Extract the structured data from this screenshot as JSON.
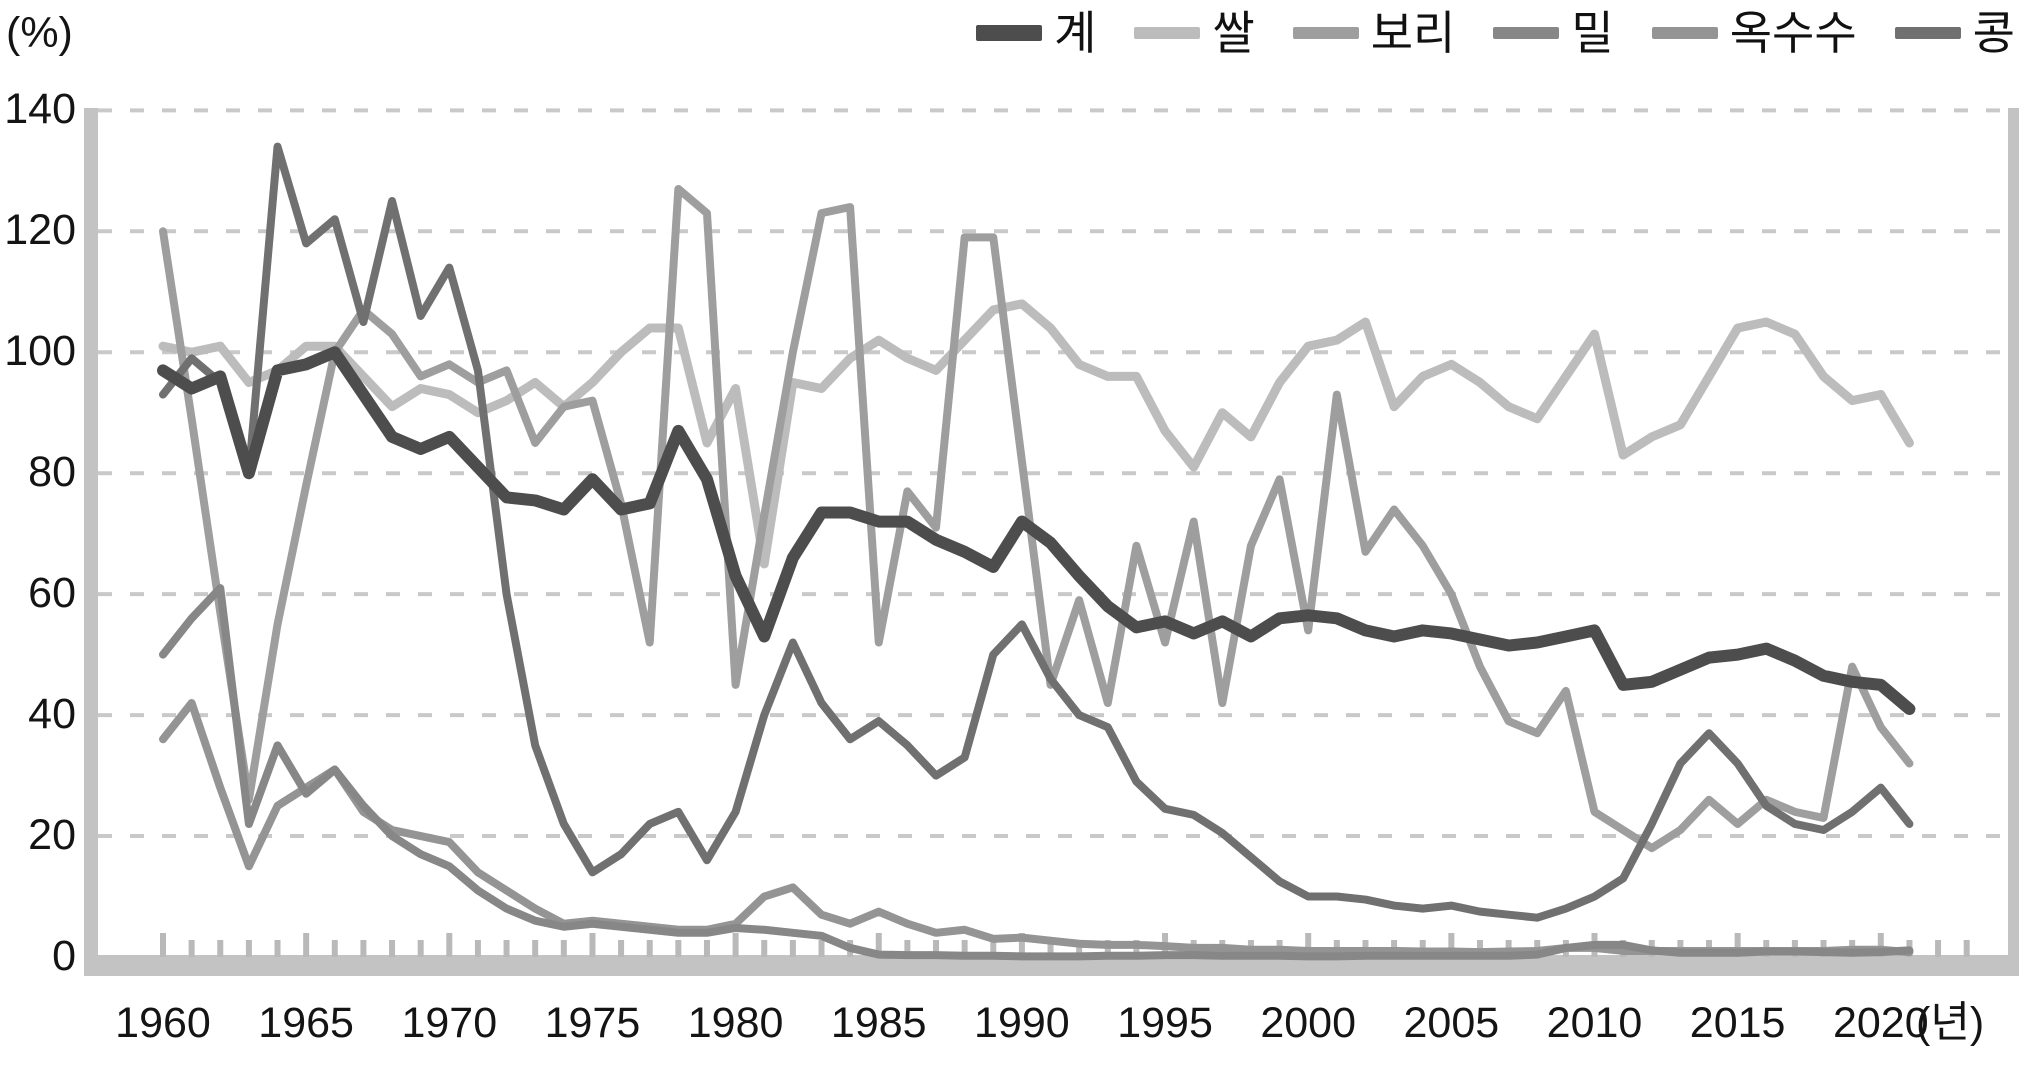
{
  "unit_labels": {
    "y_unit": "(%)",
    "x_unit": "(년)"
  },
  "chart_data": {
    "type": "line",
    "title": "",
    "xlabel": "(년)",
    "ylabel": "(%)",
    "ylim": [
      0,
      140
    ],
    "grid": "dotted horizontal lines every 20",
    "legend_position": "top-right",
    "y_ticks": [
      0,
      20,
      40,
      60,
      80,
      100,
      120,
      140
    ],
    "x_tick_labels": [
      1960,
      1965,
      1970,
      1975,
      1980,
      1985,
      1990,
      1995,
      2000,
      2005,
      2010,
      2015,
      2020
    ],
    "x": [
      1960,
      1961,
      1962,
      1963,
      1964,
      1965,
      1966,
      1967,
      1968,
      1969,
      1970,
      1971,
      1972,
      1973,
      1974,
      1975,
      1976,
      1977,
      1978,
      1979,
      1980,
      1981,
      1982,
      1983,
      1984,
      1985,
      1986,
      1987,
      1988,
      1989,
      1990,
      1991,
      1992,
      1993,
      1994,
      1995,
      1996,
      1997,
      1998,
      1999,
      2000,
      2001,
      2002,
      2003,
      2004,
      2005,
      2006,
      2007,
      2008,
      2009,
      2010,
      2011,
      2012,
      2013,
      2014,
      2015,
      2016,
      2017,
      2018,
      2019,
      2020,
      2021
    ],
    "series": [
      {
        "name": "계",
        "color": "#4d4d4d",
        "width": 12,
        "values": [
          97,
          94,
          96,
          80,
          97,
          98,
          100,
          93,
          86,
          84,
          86,
          81,
          76,
          75.5,
          74,
          79,
          74,
          75,
          87,
          79,
          63,
          53,
          66,
          73.5,
          73.5,
          72,
          72,
          69,
          67,
          64.5,
          72,
          68.5,
          63,
          58,
          54.5,
          55.5,
          53.5,
          55.5,
          53,
          56,
          56.5,
          56,
          54,
          53,
          54,
          53.5,
          52.5,
          51.5,
          52,
          53,
          54,
          45,
          45.5,
          47.5,
          49.5,
          50,
          51,
          49,
          46.5,
          45.5,
          45,
          41
        ]
      },
      {
        "name": "쌀",
        "color": "#bcbcbc",
        "width": 9,
        "values": [
          101,
          100,
          101,
          95,
          97,
          101,
          101,
          96,
          91,
          94,
          93,
          90,
          92,
          95,
          91,
          95,
          100,
          104,
          104,
          85,
          94,
          65,
          95,
          94,
          99,
          102,
          99,
          97,
          102,
          107,
          108,
          104,
          98,
          96,
          96,
          87,
          81,
          90,
          86,
          95,
          101,
          102,
          105,
          91,
          96,
          98,
          95,
          91,
          89,
          96,
          103,
          83,
          86,
          88,
          96,
          104,
          105,
          103,
          96,
          92,
          93,
          85
        ]
      },
      {
        "name": "보리",
        "color": "#9e9e9e",
        "width": 8,
        "values": [
          120,
          89,
          57,
          26,
          55,
          78,
          100,
          107,
          103,
          96,
          98,
          95,
          97,
          85,
          91,
          92,
          75,
          52,
          127,
          123,
          45,
          73,
          100,
          123,
          124,
          52,
          77,
          71,
          119,
          119,
          82,
          45,
          59,
          42,
          68,
          52,
          72,
          42,
          68,
          79,
          54,
          93,
          67,
          74,
          68,
          60,
          48,
          39,
          37,
          44,
          24,
          21,
          18,
          21,
          26,
          22,
          26,
          24,
          23,
          48,
          38,
          32
        ]
      },
      {
        "name": "밀",
        "color": "#878787",
        "width": 8,
        "values": [
          50,
          56,
          61,
          22,
          35,
          27,
          31,
          25,
          20,
          17,
          15,
          11,
          8,
          6,
          5,
          5.5,
          5,
          4.5,
          4,
          4,
          4.8,
          4.5,
          4,
          3.5,
          1.5,
          0.4,
          0.3,
          0.3,
          0.2,
          0.2,
          0.1,
          0.1,
          0.1,
          0.2,
          0.2,
          0.3,
          0.3,
          0.2,
          0.2,
          0.2,
          0.1,
          0.1,
          0.2,
          0.2,
          0.2,
          0.2,
          0.2,
          0.2,
          0.4,
          1.5,
          2,
          2,
          1.1,
          0.7,
          0.7,
          0.7,
          0.9,
          0.9,
          0.8,
          0.7,
          0.8,
          1.1
        ]
      },
      {
        "name": "옥수수",
        "color": "#949494",
        "width": 8,
        "values": [
          36,
          42,
          28,
          15,
          25,
          28,
          31,
          24,
          21,
          20,
          19,
          14,
          11,
          8,
          5.5,
          6,
          5.5,
          5,
          4.5,
          4.5,
          5.5,
          10,
          11.5,
          7,
          5.5,
          7.5,
          5.5,
          4,
          4.5,
          3,
          3.2,
          2.7,
          2.2,
          2,
          2,
          1.8,
          1.5,
          1.5,
          1.2,
          1.2,
          1,
          1,
          1,
          1,
          0.9,
          0.9,
          0.8,
          0.9,
          1,
          1.5,
          1.5,
          1,
          1,
          1,
          1,
          1,
          1,
          1,
          1,
          1.2,
          1.2,
          0.8
        ]
      },
      {
        "name": "콩",
        "color": "#707070",
        "width": 8,
        "values": [
          93,
          99,
          95,
          80,
          134,
          118,
          122,
          105,
          125,
          106,
          114,
          97,
          60,
          35,
          22,
          14,
          17,
          22,
          24,
          16,
          24,
          40,
          52,
          42,
          36,
          39,
          35,
          30,
          33,
          50,
          55,
          46,
          40,
          38,
          29,
          24.5,
          23.5,
          20.5,
          16.5,
          12.5,
          10,
          10,
          9.5,
          8.5,
          8,
          8.5,
          7.5,
          7,
          6.5,
          8,
          10,
          13,
          22,
          32,
          37,
          32,
          25,
          22,
          21,
          24,
          28,
          22
        ]
      }
    ]
  }
}
